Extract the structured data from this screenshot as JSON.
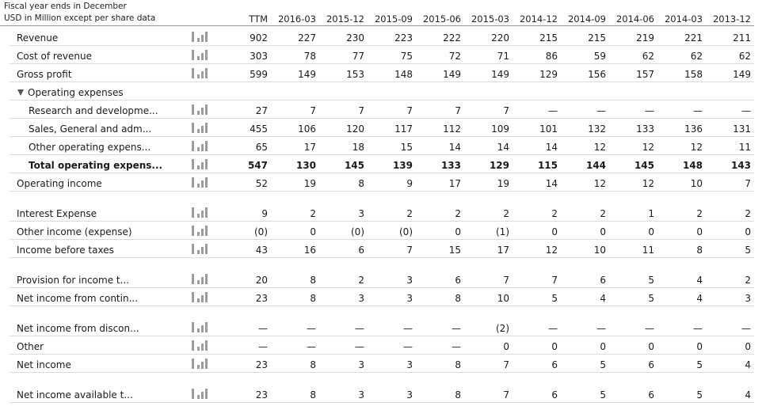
{
  "header": {
    "fiscal_year": "Fiscal year ends in December",
    "units": "USD in Million except per share data"
  },
  "columns": [
    "TTM",
    "2016-03",
    "2015-12",
    "2015-09",
    "2015-06",
    "2015-03",
    "2014-12",
    "2014-09",
    "2014-06",
    "2014-03",
    "2013-12"
  ],
  "rows": [
    {
      "label": "Revenue",
      "indent": 0,
      "bold": false,
      "values": [
        "902",
        "227",
        "230",
        "223",
        "222",
        "220",
        "215",
        "215",
        "219",
        "221",
        "211"
      ]
    },
    {
      "label": "Cost of revenue",
      "indent": 0,
      "bold": false,
      "values": [
        "303",
        "78",
        "77",
        "75",
        "72",
        "71",
        "86",
        "59",
        "62",
        "62",
        "62"
      ]
    },
    {
      "label": "Gross profit",
      "indent": 0,
      "bold": false,
      "values": [
        "599",
        "149",
        "153",
        "148",
        "149",
        "149",
        "129",
        "156",
        "157",
        "158",
        "149"
      ]
    },
    {
      "label": "Operating expenses",
      "indent": 0,
      "group": true
    },
    {
      "label": "Research and developme...",
      "indent": 1,
      "bold": false,
      "values": [
        "27",
        "7",
        "7",
        "7",
        "7",
        "7",
        "—",
        "—",
        "—",
        "—",
        "—"
      ]
    },
    {
      "label": "Sales, General and adm...",
      "indent": 1,
      "bold": false,
      "values": [
        "455",
        "106",
        "120",
        "117",
        "112",
        "109",
        "101",
        "132",
        "133",
        "136",
        "131"
      ]
    },
    {
      "label": "Other operating expens...",
      "indent": 1,
      "bold": false,
      "values": [
        "65",
        "17",
        "18",
        "15",
        "14",
        "14",
        "14",
        "12",
        "12",
        "12",
        "11"
      ]
    },
    {
      "label": "Total operating expens...",
      "indent": 1,
      "bold": true,
      "values": [
        "547",
        "130",
        "145",
        "139",
        "133",
        "129",
        "115",
        "144",
        "145",
        "148",
        "143"
      ]
    },
    {
      "label": "Operating income",
      "indent": 0,
      "bold": false,
      "values": [
        "52",
        "19",
        "8",
        "9",
        "17",
        "19",
        "14",
        "12",
        "12",
        "10",
        "7"
      ]
    },
    {
      "label": "Interest Expense",
      "indent": 0,
      "bold": false,
      "gap": true,
      "values": [
        "9",
        "2",
        "3",
        "2",
        "2",
        "2",
        "2",
        "2",
        "1",
        "2",
        "2"
      ]
    },
    {
      "label": "Other income (expense)",
      "indent": 0,
      "bold": false,
      "values": [
        "(0)",
        "0",
        "(0)",
        "(0)",
        "0",
        "(1)",
        "0",
        "0",
        "0",
        "0",
        "0"
      ]
    },
    {
      "label": "Income before taxes",
      "indent": 0,
      "bold": false,
      "values": [
        "43",
        "16",
        "6",
        "7",
        "15",
        "17",
        "12",
        "10",
        "11",
        "8",
        "5"
      ]
    },
    {
      "label": "Provision for income t...",
      "indent": 0,
      "bold": false,
      "gap": true,
      "values": [
        "20",
        "8",
        "2",
        "3",
        "6",
        "7",
        "7",
        "6",
        "5",
        "4",
        "2"
      ]
    },
    {
      "label": "Net income from contin...",
      "indent": 0,
      "bold": false,
      "values": [
        "23",
        "8",
        "3",
        "3",
        "8",
        "10",
        "5",
        "4",
        "5",
        "4",
        "3"
      ]
    },
    {
      "label": "Net income from discon...",
      "indent": 0,
      "bold": false,
      "gap": true,
      "values": [
        "—",
        "—",
        "—",
        "—",
        "—",
        "(2)",
        "—",
        "—",
        "—",
        "—",
        "—"
      ]
    },
    {
      "label": "Other",
      "indent": 0,
      "bold": false,
      "values": [
        "—",
        "—",
        "—",
        "—",
        "—",
        "0",
        "0",
        "0",
        "0",
        "0",
        "0"
      ]
    },
    {
      "label": "Net income",
      "indent": 0,
      "bold": false,
      "values": [
        "23",
        "8",
        "3",
        "3",
        "8",
        "7",
        "6",
        "5",
        "6",
        "5",
        "4"
      ]
    },
    {
      "label": "Net income available t...",
      "indent": 0,
      "bold": false,
      "gap": true,
      "values": [
        "23",
        "8",
        "3",
        "3",
        "8",
        "7",
        "6",
        "5",
        "6",
        "5",
        "4"
      ]
    }
  ],
  "colors": {
    "bar_icon": "#9c9c9c",
    "row_border": "#dcdcdc"
  },
  "icons": {
    "chart": "bar-chart-icon",
    "expand": "triangle-down-icon"
  }
}
